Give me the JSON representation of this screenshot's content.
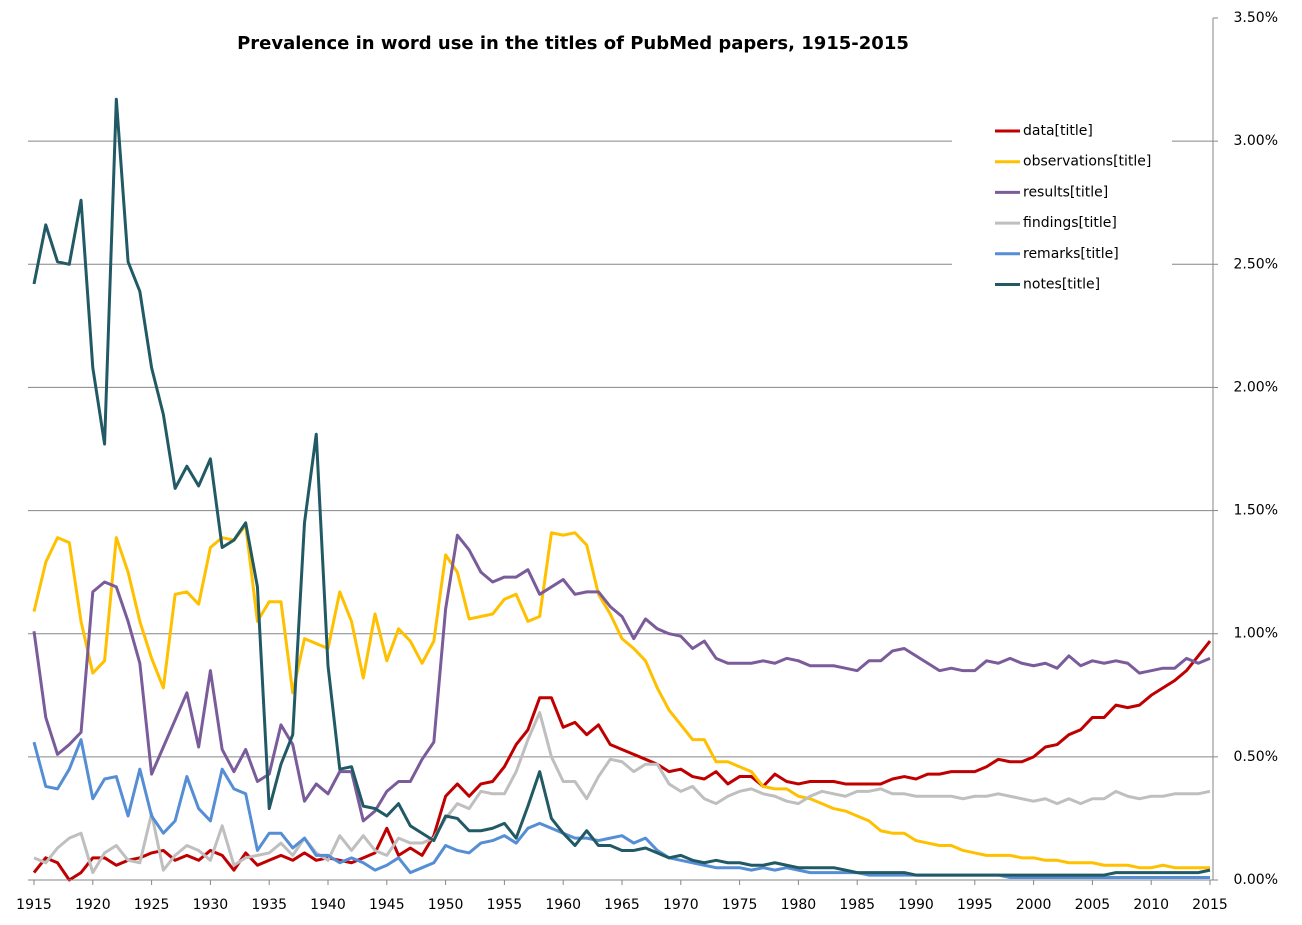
{
  "chart_data": {
    "type": "line",
    "title": "Prevalence in word use in the titles of PubMed papers, 1915-2015",
    "x": [
      1915,
      1916,
      1917,
      1918,
      1919,
      1920,
      1921,
      1922,
      1923,
      1924,
      1925,
      1926,
      1927,
      1928,
      1929,
      1930,
      1931,
      1932,
      1933,
      1934,
      1935,
      1936,
      1937,
      1938,
      1939,
      1940,
      1941,
      1942,
      1943,
      1944,
      1945,
      1946,
      1947,
      1948,
      1949,
      1950,
      1951,
      1952,
      1953,
      1954,
      1955,
      1956,
      1957,
      1958,
      1959,
      1960,
      1961,
      1962,
      1963,
      1964,
      1965,
      1966,
      1967,
      1968,
      1969,
      1970,
      1971,
      1972,
      1973,
      1974,
      1975,
      1976,
      1977,
      1978,
      1979,
      1980,
      1981,
      1982,
      1983,
      1984,
      1985,
      1986,
      1987,
      1988,
      1989,
      1990,
      1991,
      1992,
      1993,
      1994,
      1995,
      1996,
      1997,
      1998,
      1999,
      2000,
      2001,
      2002,
      2003,
      2004,
      2005,
      2006,
      2007,
      2008,
      2009,
      2010,
      2011,
      2012,
      2013,
      2014,
      2015
    ],
    "xlim": [
      1915,
      2015
    ],
    "xticks": [
      1915,
      1920,
      1925,
      1930,
      1935,
      1940,
      1945,
      1950,
      1955,
      1960,
      1965,
      1970,
      1975,
      1980,
      1985,
      1990,
      1995,
      2000,
      2005,
      2010,
      2015
    ],
    "ylim": [
      0,
      3.5
    ],
    "yticks": [
      {
        "value": 0,
        "label": "0.00%"
      },
      {
        "value": 0.5,
        "label": "0.50%"
      },
      {
        "value": 1,
        "label": "1.00%"
      },
      {
        "value": 1.5,
        "label": "1.50%"
      },
      {
        "value": 2,
        "label": "2.00%"
      },
      {
        "value": 2.5,
        "label": "2.50%"
      },
      {
        "value": 3,
        "label": "3.00%"
      },
      {
        "value": 3.5,
        "label": "3.50%"
      }
    ],
    "y_axis_side": "right",
    "grid": true,
    "legend": "upper right",
    "series": [
      {
        "name": "data[title]",
        "color": "#c00000",
        "values": [
          0.03,
          0.09,
          0.07,
          0.0,
          0.03,
          0.09,
          0.09,
          0.06,
          0.08,
          0.09,
          0.11,
          0.12,
          0.08,
          0.1,
          0.08,
          0.12,
          0.1,
          0.04,
          0.11,
          0.06,
          0.08,
          0.1,
          0.08,
          0.11,
          0.08,
          0.09,
          0.08,
          0.07,
          0.09,
          0.11,
          0.21,
          0.1,
          0.13,
          0.1,
          0.18,
          0.34,
          0.39,
          0.34,
          0.39,
          0.4,
          0.46,
          0.55,
          0.61,
          0.74,
          0.74,
          0.62,
          0.64,
          0.59,
          0.63,
          0.55,
          0.53,
          0.51,
          0.49,
          0.47,
          0.44,
          0.45,
          0.42,
          0.41,
          0.44,
          0.39,
          0.42,
          0.42,
          0.38,
          0.43,
          0.4,
          0.39,
          0.4,
          0.4,
          0.4,
          0.39,
          0.39,
          0.39,
          0.39,
          0.41,
          0.42,
          0.41,
          0.43,
          0.43,
          0.44,
          0.44,
          0.44,
          0.46,
          0.49,
          0.48,
          0.48,
          0.5,
          0.54,
          0.55,
          0.59,
          0.61,
          0.66,
          0.66,
          0.71,
          0.7,
          0.71,
          0.75,
          0.78,
          0.81,
          0.85,
          0.91,
          0.97
        ]
      },
      {
        "name": "observations[title]",
        "color": "#ffc000",
        "values": [
          1.09,
          1.29,
          1.39,
          1.37,
          1.05,
          0.84,
          0.89,
          1.39,
          1.25,
          1.05,
          0.9,
          0.78,
          1.16,
          1.17,
          1.12,
          1.35,
          1.39,
          1.38,
          1.44,
          1.05,
          1.13,
          1.13,
          0.76,
          0.98,
          0.96,
          0.94,
          1.17,
          1.05,
          0.82,
          1.08,
          0.89,
          1.02,
          0.97,
          0.88,
          0.97,
          1.32,
          1.25,
          1.06,
          1.07,
          1.08,
          1.14,
          1.16,
          1.05,
          1.07,
          1.41,
          1.4,
          1.41,
          1.36,
          1.16,
          1.08,
          0.98,
          0.94,
          0.89,
          0.78,
          0.69,
          0.63,
          0.57,
          0.57,
          0.48,
          0.48,
          0.46,
          0.44,
          0.38,
          0.37,
          0.37,
          0.34,
          0.33,
          0.31,
          0.29,
          0.28,
          0.26,
          0.24,
          0.2,
          0.19,
          0.19,
          0.16,
          0.15,
          0.14,
          0.14,
          0.12,
          0.11,
          0.1,
          0.1,
          0.1,
          0.09,
          0.09,
          0.08,
          0.08,
          0.07,
          0.07,
          0.07,
          0.06,
          0.06,
          0.06,
          0.05,
          0.05,
          0.06,
          0.05,
          0.05,
          0.05,
          0.05
        ]
      },
      {
        "name": "results[title]",
        "color": "#7a5c9a",
        "values": [
          1.01,
          0.66,
          0.51,
          0.55,
          0.6,
          1.17,
          1.21,
          1.19,
          1.05,
          0.88,
          0.43,
          0.54,
          0.65,
          0.76,
          0.54,
          0.85,
          0.53,
          0.44,
          0.53,
          0.4,
          0.43,
          0.63,
          0.55,
          0.32,
          0.39,
          0.35,
          0.44,
          0.44,
          0.24,
          0.28,
          0.36,
          0.4,
          0.4,
          0.49,
          0.56,
          1.1,
          1.4,
          1.34,
          1.25,
          1.21,
          1.23,
          1.23,
          1.26,
          1.16,
          1.19,
          1.22,
          1.16,
          1.17,
          1.17,
          1.11,
          1.07,
          0.98,
          1.06,
          1.02,
          1.0,
          0.99,
          0.94,
          0.97,
          0.9,
          0.88,
          0.88,
          0.88,
          0.89,
          0.88,
          0.9,
          0.89,
          0.87,
          0.87,
          0.87,
          0.86,
          0.85,
          0.89,
          0.89,
          0.93,
          0.94,
          0.91,
          0.88,
          0.85,
          0.86,
          0.85,
          0.85,
          0.89,
          0.88,
          0.9,
          0.88,
          0.87,
          0.88,
          0.86,
          0.91,
          0.87,
          0.89,
          0.88,
          0.89,
          0.88,
          0.84,
          0.85,
          0.86,
          0.86,
          0.9,
          0.88,
          0.9
        ]
      },
      {
        "name": "findings[title]",
        "color": "#bfbfbf",
        "values": [
          0.09,
          0.07,
          0.13,
          0.17,
          0.19,
          0.03,
          0.11,
          0.14,
          0.08,
          0.07,
          0.27,
          0.04,
          0.1,
          0.14,
          0.12,
          0.08,
          0.22,
          0.06,
          0.09,
          0.1,
          0.11,
          0.15,
          0.1,
          0.17,
          0.11,
          0.08,
          0.18,
          0.12,
          0.18,
          0.12,
          0.1,
          0.17,
          0.15,
          0.15,
          0.17,
          0.25,
          0.31,
          0.29,
          0.36,
          0.35,
          0.35,
          0.44,
          0.57,
          0.68,
          0.5,
          0.4,
          0.4,
          0.33,
          0.42,
          0.49,
          0.48,
          0.44,
          0.47,
          0.47,
          0.39,
          0.36,
          0.38,
          0.33,
          0.31,
          0.34,
          0.36,
          0.37,
          0.35,
          0.34,
          0.32,
          0.31,
          0.34,
          0.36,
          0.35,
          0.34,
          0.36,
          0.36,
          0.37,
          0.35,
          0.35,
          0.34,
          0.34,
          0.34,
          0.34,
          0.33,
          0.34,
          0.34,
          0.35,
          0.34,
          0.33,
          0.32,
          0.33,
          0.31,
          0.33,
          0.31,
          0.33,
          0.33,
          0.36,
          0.34,
          0.33,
          0.34,
          0.34,
          0.35,
          0.35,
          0.35,
          0.36
        ]
      },
      {
        "name": "remarks[title]",
        "color": "#558ed5",
        "values": [
          0.56,
          0.38,
          0.37,
          0.45,
          0.57,
          0.33,
          0.41,
          0.42,
          0.26,
          0.45,
          0.26,
          0.19,
          0.24,
          0.42,
          0.29,
          0.24,
          0.45,
          0.37,
          0.35,
          0.12,
          0.19,
          0.19,
          0.13,
          0.17,
          0.1,
          0.1,
          0.07,
          0.09,
          0.07,
          0.04,
          0.06,
          0.09,
          0.03,
          0.05,
          0.07,
          0.14,
          0.12,
          0.11,
          0.15,
          0.16,
          0.18,
          0.15,
          0.21,
          0.23,
          0.21,
          0.19,
          0.17,
          0.17,
          0.16,
          0.17,
          0.18,
          0.15,
          0.17,
          0.12,
          0.09,
          0.08,
          0.07,
          0.06,
          0.05,
          0.05,
          0.05,
          0.04,
          0.05,
          0.04,
          0.05,
          0.04,
          0.03,
          0.03,
          0.03,
          0.03,
          0.03,
          0.02,
          0.02,
          0.02,
          0.02,
          0.02,
          0.02,
          0.02,
          0.02,
          0.02,
          0.02,
          0.02,
          0.02,
          0.01,
          0.01,
          0.01,
          0.01,
          0.01,
          0.01,
          0.01,
          0.01,
          0.01,
          0.01,
          0.01,
          0.01,
          0.01,
          0.01,
          0.01,
          0.01,
          0.01,
          0.01
        ]
      },
      {
        "name": "notes[title]",
        "color": "#215a65",
        "values": [
          2.42,
          2.66,
          2.51,
          2.5,
          2.76,
          2.08,
          1.77,
          3.17,
          2.51,
          2.39,
          2.08,
          1.89,
          1.59,
          1.68,
          1.6,
          1.71,
          1.35,
          1.38,
          1.45,
          1.19,
          0.29,
          0.47,
          0.59,
          1.45,
          1.81,
          0.87,
          0.45,
          0.46,
          0.3,
          0.29,
          0.26,
          0.31,
          0.22,
          0.19,
          0.16,
          0.26,
          0.25,
          0.2,
          0.2,
          0.21,
          0.23,
          0.17,
          0.3,
          0.44,
          0.25,
          0.19,
          0.14,
          0.2,
          0.14,
          0.14,
          0.12,
          0.12,
          0.13,
          0.11,
          0.09,
          0.1,
          0.08,
          0.07,
          0.08,
          0.07,
          0.07,
          0.06,
          0.06,
          0.07,
          0.06,
          0.05,
          0.05,
          0.05,
          0.05,
          0.04,
          0.03,
          0.03,
          0.03,
          0.03,
          0.03,
          0.02,
          0.02,
          0.02,
          0.02,
          0.02,
          0.02,
          0.02,
          0.02,
          0.02,
          0.02,
          0.02,
          0.02,
          0.02,
          0.02,
          0.02,
          0.02,
          0.02,
          0.03,
          0.03,
          0.03,
          0.03,
          0.03,
          0.03,
          0.03,
          0.03,
          0.04
        ]
      }
    ]
  }
}
